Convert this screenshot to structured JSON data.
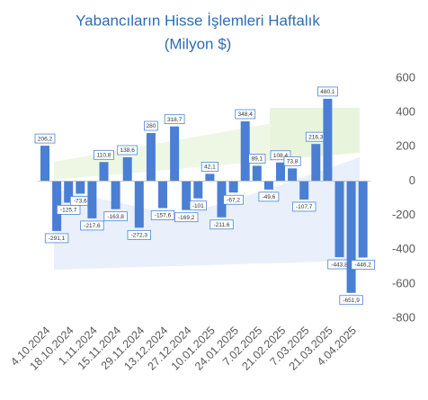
{
  "chart_data": {
    "type": "bar",
    "title": "Yabancıların Hisse İşlemleri Haftalık",
    "subtitle": "(Milyon $)",
    "categories": [
      "4.10.2024",
      null,
      "18.10.2024",
      null,
      "1.11.2024",
      null,
      "15.11.2024",
      null,
      "29.11.2024",
      null,
      "13.12.2024",
      null,
      "27.12.2024",
      null,
      "10.01.2025",
      null,
      "24.01.2025",
      null,
      "7.02.2025",
      null,
      "21.02.2025",
      null,
      "7.03.2025",
      null,
      "21.03.2025",
      null,
      "4.04.2025",
      null
    ],
    "values": [
      206.2,
      -291.1,
      -125.7,
      -73.6,
      -217.6,
      110.8,
      -163.8,
      138.6,
      -272.3,
      280,
      -157.6,
      318.7,
      -169.2,
      -101,
      42.1,
      -211.6,
      -67.2,
      348.4,
      89.1,
      -49.6,
      108.4,
      73.8,
      -107.7,
      216.3,
      480.1,
      -443.8,
      -651.9,
      -446.2
    ],
    "value_labels": [
      "206,2",
      "-291,1",
      "-125,7",
      "-73,6",
      "-217,6",
      "110,8",
      "-163,8",
      "138,6",
      "-272,3",
      "280",
      "-157,6",
      "318,7",
      "-169,2",
      "-101",
      "42,1",
      "-211,6",
      "-67,2",
      "348,4",
      "89,1",
      "-49,6",
      "108,4",
      "73,8",
      "-107,7",
      "216,3",
      "480,1",
      "-443,8",
      "-651,9",
      "-446,2"
    ],
    "color": "#4a7fd4",
    "ylim": [
      -800,
      600
    ],
    "yticks": [
      600,
      400,
      200,
      0,
      -200,
      -400,
      -600,
      -800
    ],
    "grid": false
  }
}
